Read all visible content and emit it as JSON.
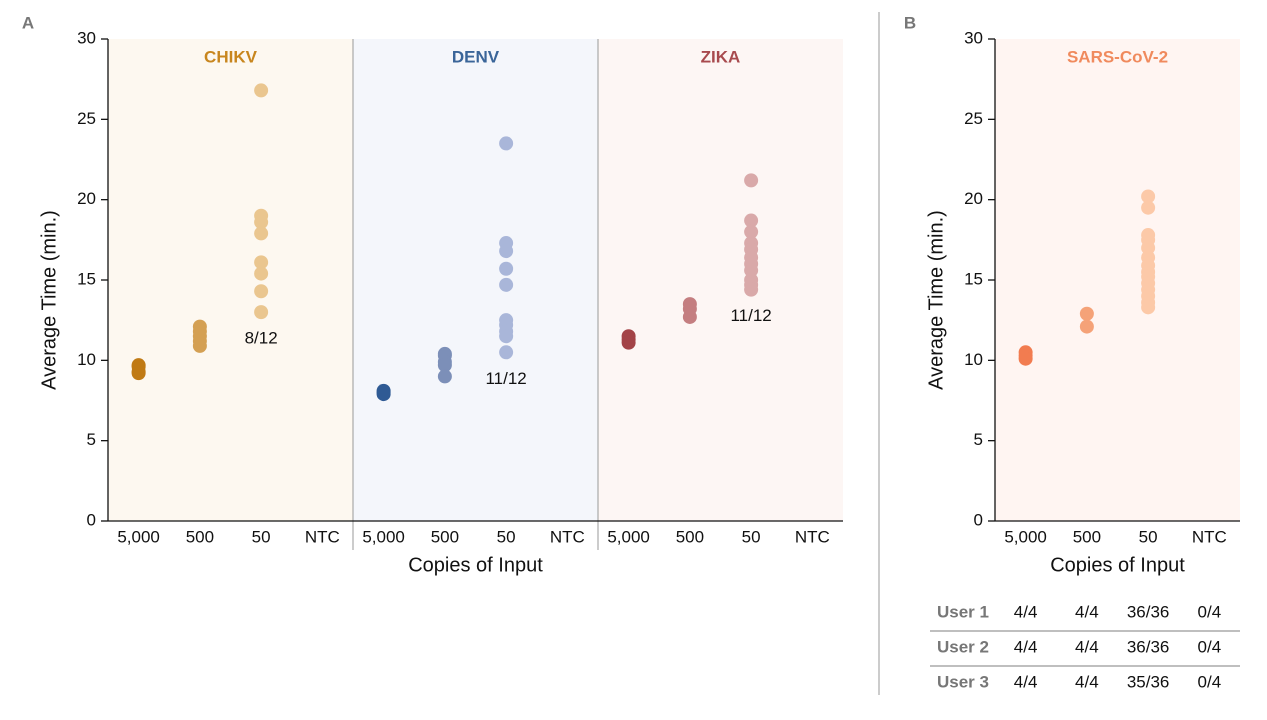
{
  "chart_data": [
    {
      "type": "strip",
      "panel": "A",
      "ylabel": "Average Time (min.)",
      "xlabel": "Copies of Input",
      "ylim": [
        0,
        30
      ],
      "yticks": [
        0,
        5,
        10,
        15,
        20,
        25,
        30
      ],
      "categories": [
        "5,000",
        "500",
        "50",
        "NTC"
      ],
      "facets": [
        {
          "name": "CHIKV",
          "color": "#c8861e",
          "background": "#fdf8f0",
          "annotation": "8/12",
          "series": [
            {
              "color": "#c07a14",
              "values": [
                9.7,
                9.6,
                9.3,
                9.2
              ]
            },
            {
              "color": "#d4a053",
              "values": [
                12.1,
                11.8,
                11.5,
                11.2,
                10.9
              ]
            },
            {
              "color": "#eac68f",
              "values": [
                26.8,
                19.0,
                18.6,
                17.9,
                16.1,
                15.4,
                14.3,
                13.0
              ]
            }
          ]
        },
        {
          "name": "DENV",
          "color": "#3a6599",
          "background": "#f4f6fb",
          "annotation": "11/12",
          "series": [
            {
              "color": "#2f5a94",
              "values": [
                8.1,
                8.0,
                7.9
              ]
            },
            {
              "color": "#7c8fb8",
              "values": [
                10.4,
                10.3,
                9.9,
                9.7,
                9.0
              ]
            },
            {
              "color": "#a9b6d9",
              "values": [
                23.5,
                17.3,
                16.8,
                15.7,
                14.7,
                12.5,
                12.2,
                11.8,
                11.5,
                10.5
              ]
            }
          ]
        },
        {
          "name": "ZIKA",
          "color": "#a84a4e",
          "background": "#fdf6f4",
          "annotation": "11/12",
          "series": [
            {
              "color": "#a34347",
              "values": [
                11.5,
                11.3,
                11.1
              ]
            },
            {
              "color": "#c47e80",
              "values": [
                13.5,
                13.2,
                12.7
              ]
            },
            {
              "color": "#d9a9a9",
              "values": [
                21.2,
                18.7,
                18.0,
                17.3,
                16.9,
                16.4,
                16.0,
                15.6,
                15.0,
                14.7,
                14.4
              ]
            }
          ]
        }
      ]
    },
    {
      "type": "strip",
      "panel": "B",
      "ylabel": "Average Time (min.)",
      "xlabel": "Copies of Input",
      "ylim": [
        0,
        30
      ],
      "yticks": [
        0,
        5,
        10,
        15,
        20,
        25,
        30
      ],
      "categories": [
        "5,000",
        "500",
        "50",
        "NTC"
      ],
      "facets": [
        {
          "name": "SARS-CoV-2",
          "color": "#f08a5d",
          "background": "#fff5f2",
          "series": [
            {
              "color": "#f27c50",
              "values": [
                10.5,
                10.3,
                10.1
              ]
            },
            {
              "color": "#f5a278",
              "values": [
                12.9,
                12.1
              ]
            },
            {
              "color": "#fcc9a8",
              "values": [
                20.2,
                19.5,
                17.8,
                17.5,
                17.0,
                16.4,
                15.9,
                15.5,
                15.2,
                14.8,
                14.4,
                14.0,
                13.6,
                13.3
              ]
            }
          ]
        }
      ],
      "table": {
        "rows": [
          [
            "User 1",
            "4/4",
            "4/4",
            "36/36",
            "0/4"
          ],
          [
            "User 2",
            "4/4",
            "4/4",
            "36/36",
            "0/4"
          ],
          [
            "User 3",
            "4/4",
            "4/4",
            "35/36",
            "0/4"
          ]
        ]
      }
    }
  ]
}
